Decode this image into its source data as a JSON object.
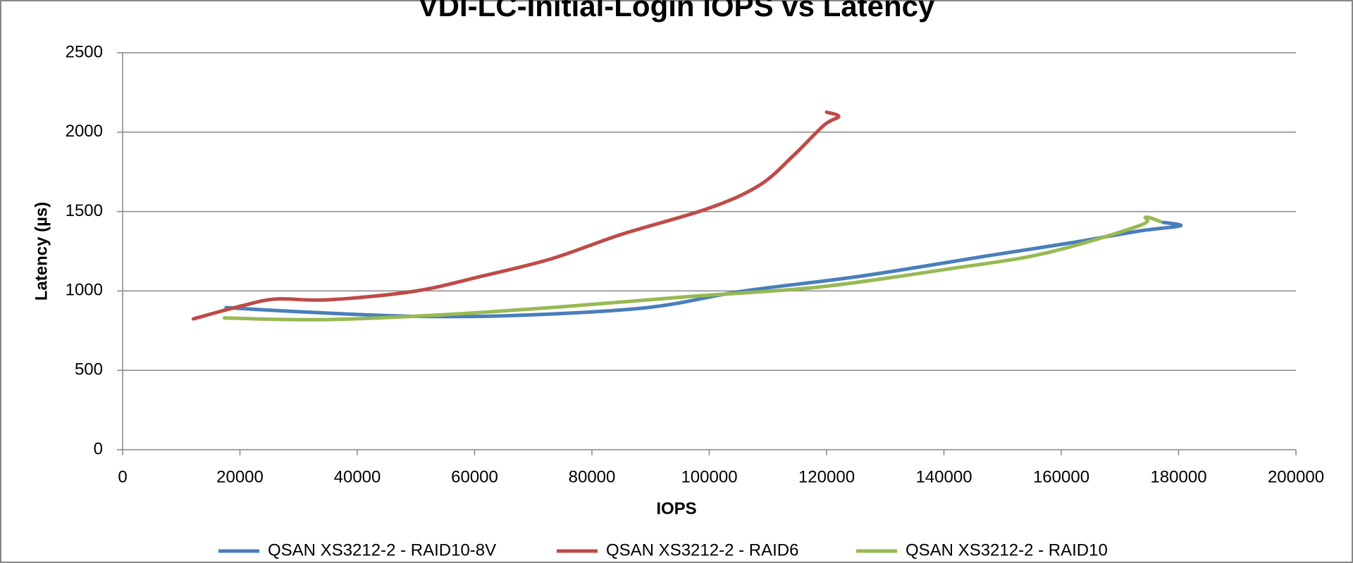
{
  "chart_data": {
    "type": "line",
    "title": "VDI-LC-Initial-Login IOPS vs Latency",
    "x_label": "IOPS",
    "y_label": "Latency (µs)",
    "xlim": [
      0,
      200000
    ],
    "xticks": [
      0,
      20000,
      40000,
      60000,
      80000,
      100000,
      120000,
      140000,
      160000,
      180000,
      200000
    ],
    "ylim": [
      0,
      2500
    ],
    "yticks": [
      0,
      500,
      1000,
      1500,
      2000,
      2500
    ],
    "grid": true,
    "legend": "bottom",
    "series": [
      {
        "name": "QSAN XS3212-2 - RAID10-8V",
        "color": "#4a7ebb",
        "x": [
          17647,
          30588,
          49706,
          67353,
          89412,
          105588,
          126176,
          148235,
          161470,
          173235,
          180294,
          177353
        ],
        "values": [
          895,
          868,
          840,
          846,
          895,
          998,
          1095,
          1226,
          1302,
          1377,
          1410,
          1432
        ]
      },
      {
        "name": "QSAN XS3212-2 - RAID6",
        "color": "#be4b48",
        "x": [
          12059,
          20294,
          26176,
          35000,
          49706,
          61470,
          73235,
          85000,
          99706,
          108529,
          114412,
          119559,
          122059,
          120000
        ],
        "values": [
          824,
          906,
          949,
          944,
          998,
          1095,
          1204,
          1356,
          1518,
          1665,
          1855,
          2044,
          2099,
          2126
        ]
      },
      {
        "name": "QSAN XS3212-2 - RAID10",
        "color": "#98b954",
        "x": [
          17353,
          33529,
          52647,
          74706,
          96765,
          118824,
          140882,
          157059,
          173235,
          174412,
          176912
        ],
        "values": [
          830,
          819,
          846,
          900,
          965,
          1025,
          1139,
          1236,
          1410,
          1464,
          1437
        ]
      }
    ]
  }
}
